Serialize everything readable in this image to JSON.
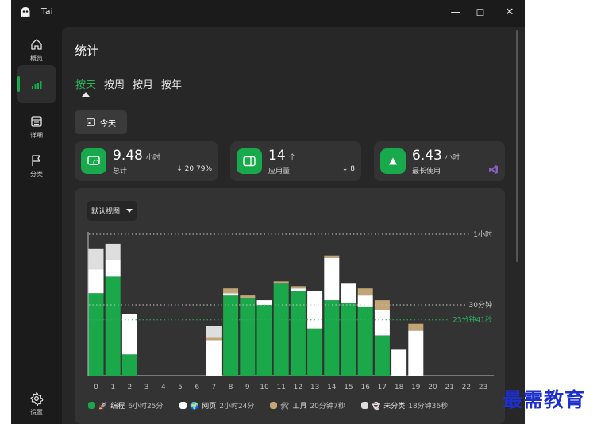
{
  "app": {
    "title": "Tai"
  },
  "window_controls": {
    "minimize": "—",
    "maximize": "☐",
    "close": "✕"
  },
  "nav": {
    "overview": "概览",
    "stats": "",
    "details": "详细",
    "category": "分类",
    "settings": "设置"
  },
  "page": {
    "title": "统计"
  },
  "tabs": [
    "按天",
    "按周",
    "按月",
    "按年"
  ],
  "today_button": "今天",
  "cards": [
    {
      "value": "9.48",
      "unit": "小时",
      "label": "总计",
      "change": "↓ 20.79%"
    },
    {
      "value": "14",
      "unit": "个",
      "label": "应用量",
      "change": "↓ 8"
    },
    {
      "value": "6.43",
      "unit": "小时",
      "label": "最长使用",
      "change": ""
    }
  ],
  "view_select": "默认视图",
  "colors": {
    "accent": "#18a94c",
    "program": "#1aa84a",
    "web": "#ffffff",
    "tool": "#c2a574",
    "uncat": "#dedede"
  },
  "chart_data": {
    "type": "bar",
    "stacked": true,
    "title": "",
    "xlabel": "",
    "ylabel": "",
    "categories": [
      "0",
      "1",
      "2",
      "3",
      "4",
      "5",
      "6",
      "7",
      "8",
      "9",
      "10",
      "11",
      "12",
      "13",
      "14",
      "15",
      "16",
      "17",
      "18",
      "19",
      "20",
      "21",
      "22",
      "23"
    ],
    "ylim": [
      0,
      60
    ],
    "series": [
      {
        "name": "编程",
        "values": [
          35,
          42,
          9,
          0,
          0,
          0,
          0,
          0,
          34,
          33,
          30,
          39,
          36,
          20,
          32,
          31,
          29,
          17,
          0,
          0,
          0,
          0,
          0,
          0
        ]
      },
      {
        "name": "网页",
        "values": [
          10,
          7,
          17,
          0,
          0,
          0,
          0,
          15,
          1,
          0,
          2,
          0,
          1,
          16,
          18,
          8,
          5,
          11,
          11,
          19,
          0,
          0,
          0,
          0
        ]
      },
      {
        "name": "工具",
        "values": [
          0,
          0,
          0,
          0,
          0,
          0,
          0,
          1,
          2,
          1,
          0,
          1,
          1,
          0,
          1,
          0,
          3,
          4,
          0,
          3,
          0,
          0,
          0,
          0
        ]
      },
      {
        "name": "未分类",
        "values": [
          9,
          7,
          0,
          0,
          0,
          0,
          0,
          5,
          0,
          0,
          0,
          0,
          0,
          0,
          0,
          0,
          0,
          0,
          0,
          0,
          0,
          0,
          0,
          0
        ]
      }
    ],
    "reference_lines": [
      {
        "value": 60,
        "label": "1小时"
      },
      {
        "value": 30,
        "label": "30分钟"
      },
      {
        "value": 23.68,
        "label": "23分钟41秒"
      }
    ]
  },
  "legend": [
    {
      "name": "编程",
      "glyph": "🚀",
      "duration": "6小时25分"
    },
    {
      "name": "网页",
      "glyph": "🌍",
      "duration": "2小时24分"
    },
    {
      "name": "工具",
      "glyph": "🛠",
      "duration": "20分钟7秒"
    },
    {
      "name": "未分类",
      "glyph": "👻",
      "duration": "18分钟36秒"
    }
  ],
  "watermark": "最需教育"
}
